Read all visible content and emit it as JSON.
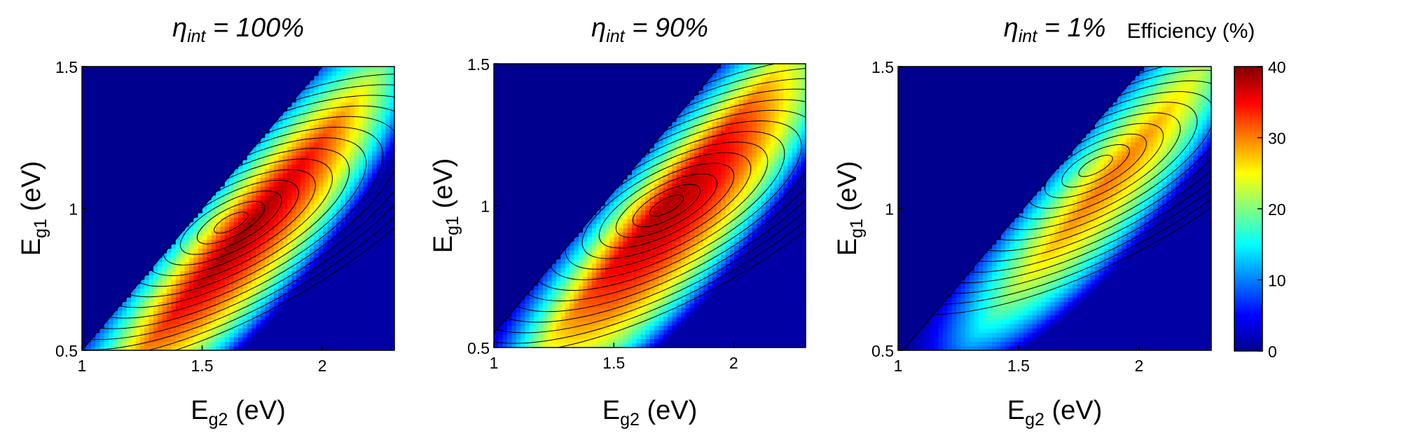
{
  "figure": {
    "colorbar": {
      "title": "Efficiency (%)",
      "range": [
        0,
        40
      ],
      "ticks": [
        "0",
        "10",
        "20",
        "30",
        "40"
      ],
      "colormap": [
        "#00008f",
        "#0000ff",
        "#0080ff",
        "#00ffff",
        "#80ff80",
        "#ffff00",
        "#ff8000",
        "#ff0000",
        "#800000"
      ]
    }
  },
  "chart_data": [
    {
      "type": "heatmap",
      "title_symbol": "η",
      "title_subscript": "int",
      "title_value": " = 100%",
      "xlabel_main": "E",
      "xlabel_sub": "g2",
      "xlabel_unit": " (eV)",
      "ylabel_main": "E",
      "ylabel_sub": "g1",
      "ylabel_unit": " (eV)",
      "xlim": [
        1,
        2.3
      ],
      "ylim": [
        0.5,
        1.5
      ],
      "x_ticks": [
        "1",
        "1.5",
        "2"
      ],
      "y_ticks": [
        "0.5",
        "1",
        "1.5"
      ],
      "zlim": [
        0,
        40
      ],
      "cutoff_offset_at_x1": 0.0,
      "cutoff_slope": 1.0,
      "peak": {
        "x": 1.62,
        "y": 0.95,
        "value": 40
      }
    },
    {
      "type": "heatmap",
      "title_symbol": "η",
      "title_subscript": "int",
      "title_value": " = 90%",
      "xlabel_main": "E",
      "xlabel_sub": "g2",
      "xlabel_unit": " (eV)",
      "ylabel_main": "E",
      "ylabel_sub": "g1",
      "ylabel_unit": " (eV)",
      "xlim": [
        1,
        2.3
      ],
      "ylim": [
        0.5,
        1.5
      ],
      "x_ticks": [
        "1",
        "1.5",
        "2"
      ],
      "y_ticks": [
        "0.5",
        "1",
        "1.5"
      ],
      "zlim": [
        0,
        40
      ],
      "cutoff_offset_at_x1": 0.05,
      "cutoff_slope": 1.0,
      "peak": {
        "x": 1.72,
        "y": 1.0,
        "value": 38
      }
    },
    {
      "type": "heatmap",
      "title_symbol": "η",
      "title_subscript": "int",
      "title_value": " = 1%",
      "xlabel_main": "E",
      "xlabel_sub": "g2",
      "xlabel_unit": " (eV)",
      "ylabel_main": "E",
      "ylabel_sub": "g1",
      "ylabel_unit": " (eV)",
      "xlim": [
        1,
        2.3
      ],
      "ylim": [
        0.5,
        1.5
      ],
      "x_ticks": [
        "1",
        "1.5",
        "2"
      ],
      "y_ticks": [
        "0.5",
        "1",
        "1.5"
      ],
      "zlim": [
        0,
        40
      ],
      "cutoff_offset_at_x1": -0.02,
      "cutoff_slope": 1.0,
      "peak": {
        "x": 1.82,
        "y": 1.15,
        "value": 32
      }
    }
  ]
}
